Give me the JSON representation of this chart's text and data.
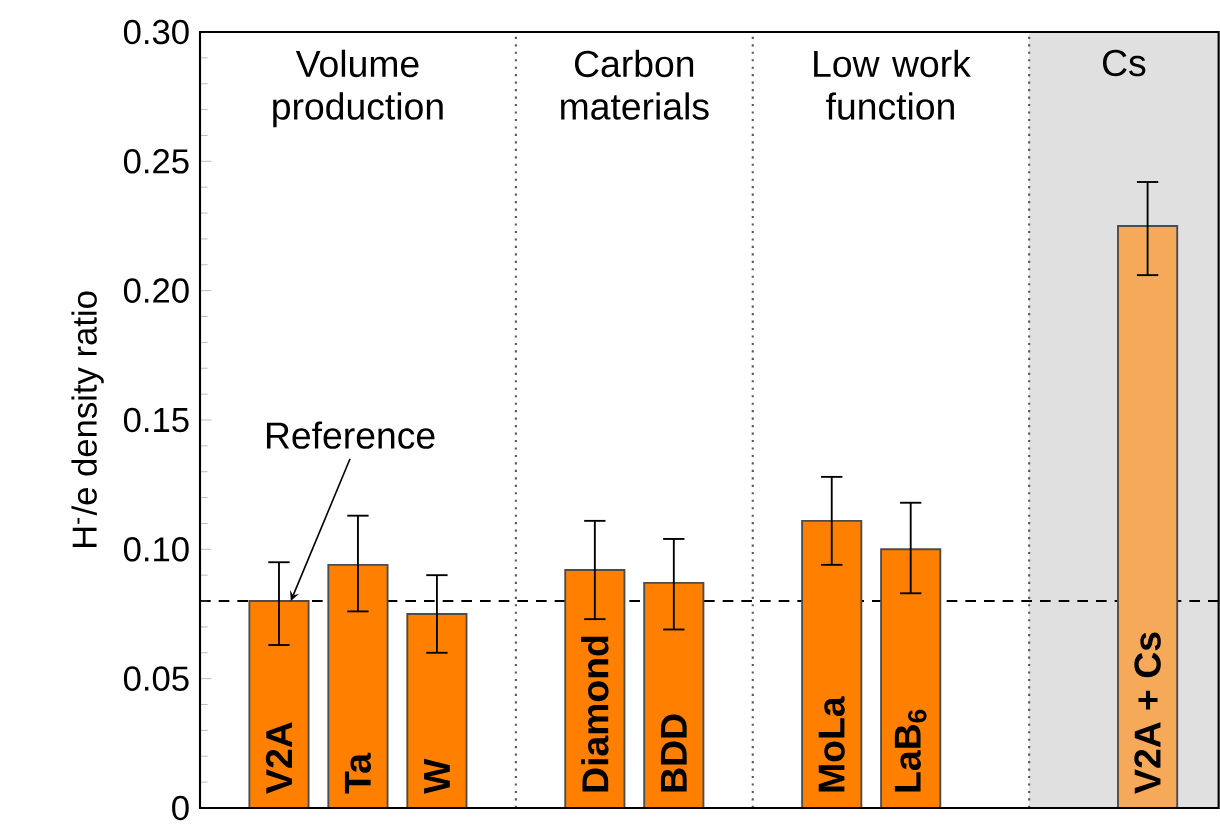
{
  "chart_data": {
    "type": "bar",
    "ylabel": "H$^{-}$/e density ratio",
    "categories": [
      "V2A",
      "Ta",
      "W",
      null,
      "Diamond",
      "BDD",
      null,
      "MoLa",
      "LaB$_{6}$",
      null,
      null,
      "V2A + Cs"
    ],
    "values": [
      0.08,
      0.094,
      0.075,
      null,
      0.092,
      0.087,
      null,
      0.111,
      0.1,
      null,
      null,
      0.225
    ],
    "colors": [
      "#ff8000",
      "#ff8000",
      "#ff8000",
      null,
      "#ff8000",
      "#ff8000",
      null,
      "#ff8000",
      "#ff8000",
      null,
      null,
      "#f7a95a"
    ],
    "errors": [
      [
        0.063,
        0.095
      ],
      [
        0.076,
        0.113
      ],
      [
        0.06,
        0.09
      ],
      null,
      [
        0.073,
        0.111
      ],
      [
        0.069,
        0.104
      ],
      null,
      [
        0.094,
        0.128
      ],
      [
        0.083,
        0.118
      ],
      null,
      null,
      [
        0.206,
        0.242
      ]
    ],
    "ylim": [
      0,
      0.3
    ],
    "yticks": [
      0,
      0.05,
      {
        "value": 0.1,
        "label": "0.10"
      },
      0.15,
      {
        "value": 0.2,
        "label": "0.20"
      },
      0.25,
      {
        "value": 0.3,
        "label": "0.30"
      }
    ],
    "ref_lines": [
      {
        "axis": "y",
        "value": 0.08,
        "line_style": "dashed"
      }
    ],
    "annotations": [
      {
        "text": "Reference",
        "x": "V2A",
        "y": 0.08
      },
      "Volume production",
      "Carbon materials",
      "Low work function",
      "Cs"
    ]
  }
}
